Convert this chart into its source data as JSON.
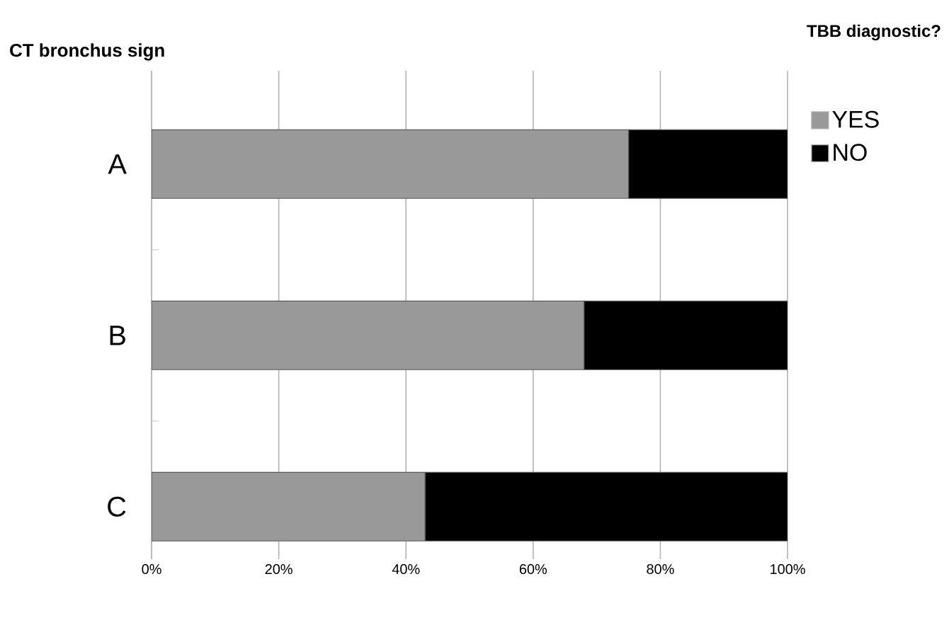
{
  "chart_data": {
    "type": "bar",
    "orientation": "horizontal",
    "stacked": true,
    "ylabel": "CT bronchus sign",
    "legend_title": "TBB diagnostic?",
    "categories": [
      "A",
      "B",
      "C"
    ],
    "series": [
      {
        "name": "YES",
        "color": "#999999",
        "values": [
          75,
          68,
          43
        ]
      },
      {
        "name": "NO",
        "color": "#000000",
        "values": [
          25,
          32,
          57
        ]
      }
    ],
    "xlim": [
      0,
      100
    ],
    "xticks": [
      {
        "value": 0,
        "label": "0%"
      },
      {
        "value": 20,
        "label": "20%"
      },
      {
        "value": 40,
        "label": "40%"
      },
      {
        "value": 60,
        "label": "60%"
      },
      {
        "value": 80,
        "label": "80%"
      },
      {
        "value": 100,
        "label": "100%"
      }
    ],
    "grid": "x",
    "legend": "top right"
  }
}
